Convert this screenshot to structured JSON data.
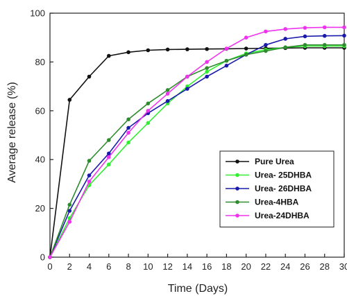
{
  "chart_data": {
    "type": "line",
    "xlabel": "Time (Days)",
    "ylabel": "Average release (%)",
    "xlim": [
      0,
      30
    ],
    "ylim": [
      0,
      100
    ],
    "xticks": [
      0,
      2,
      4,
      6,
      8,
      10,
      12,
      14,
      16,
      18,
      20,
      22,
      24,
      26,
      28,
      30
    ],
    "yticks": [
      0,
      20,
      40,
      60,
      80,
      100
    ],
    "grid": false,
    "legend_position": "right",
    "x": [
      0,
      2,
      4,
      6,
      8,
      10,
      12,
      14,
      16,
      18,
      20,
      22,
      24,
      26,
      28,
      30
    ],
    "series": [
      {
        "name": "Pure Urea",
        "color": "#111111",
        "values": [
          0,
          64.5,
          74,
          82.5,
          84,
          84.8,
          85.1,
          85.2,
          85.3,
          85.4,
          85.5,
          85.6,
          85.7,
          85.8,
          85.8,
          85.8
        ]
      },
      {
        "name": "Urea- 25DHBA",
        "color": "#33ee33",
        "values": [
          0,
          16,
          29.5,
          38,
          47,
          55,
          63,
          70,
          76,
          80.5,
          83.5,
          85,
          86,
          86.5,
          86.5,
          86.5
        ]
      },
      {
        "name": "Urea- 26DHBA",
        "color": "#1a1aaa",
        "values": [
          0,
          19,
          33.5,
          42.5,
          53,
          59,
          64,
          69,
          74,
          78.5,
          83,
          87,
          89.5,
          90.5,
          90.7,
          90.8
        ]
      },
      {
        "name": "Urea-4HBA",
        "color": "#2e8b2e",
        "values": [
          0,
          21.5,
          39.5,
          48,
          56.5,
          63,
          68.5,
          74,
          77.5,
          80.5,
          83,
          84.5,
          86,
          87,
          87,
          87
        ]
      },
      {
        "name": "Urea-24DHBA",
        "color": "#ee33ee",
        "values": [
          0,
          14.5,
          31,
          41,
          51,
          60,
          67,
          74,
          80,
          85.5,
          90,
          92.5,
          93.5,
          94,
          94.2,
          94.2
        ]
      }
    ]
  }
}
